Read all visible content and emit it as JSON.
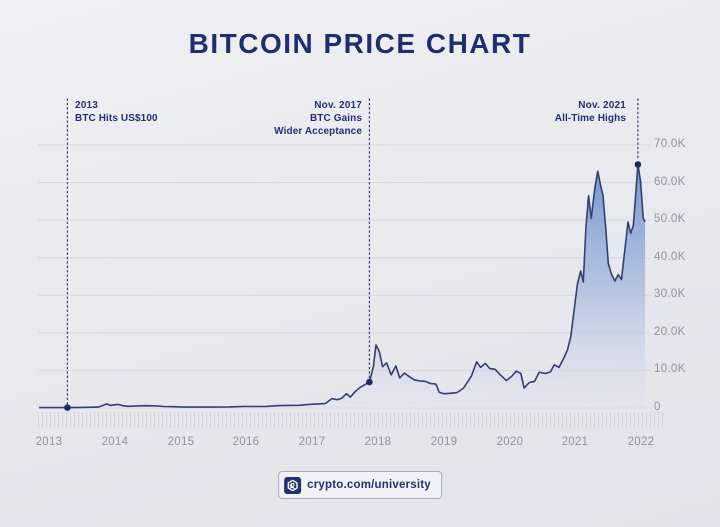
{
  "title": "BITCOIN PRICE CHART",
  "colors": {
    "accent_navy": "#1e2e6e",
    "line": "#33406e",
    "marker": "#1d2b5e",
    "grid": "#d6d8dd",
    "axis_label_gray": "#8f939c",
    "fill_top": "#6089cc",
    "fill_mid": "#a9bcdf",
    "fill_bottom": "#e0e4ee"
  },
  "annotations": [
    {
      "heading": "2013",
      "lines": [
        "BTC Hits US$100"
      ],
      "year": 2013.28,
      "value": 100,
      "align": "left"
    },
    {
      "heading": "Nov. 2017",
      "lines": [
        "BTC Gains",
        "Wider Acceptance"
      ],
      "year": 2017.87,
      "value": 6900,
      "align": "right"
    },
    {
      "heading": "Nov. 2021",
      "lines": [
        "All-Time Highs"
      ],
      "year": 2021.95,
      "value": 64800,
      "align": "right"
    }
  ],
  "y_axis": {
    "labels": [
      "70.0K",
      "60.0K",
      "50.0K",
      "40.0K",
      "30.0K",
      "20.0K",
      "10.0K",
      "0"
    ]
  },
  "x_axis": {
    "labels": [
      "2013",
      "2014",
      "2015",
      "2016",
      "2017",
      "2018",
      "2019",
      "2020",
      "2021",
      "2022"
    ]
  },
  "footer": {
    "badge_text": "crypto.com/university",
    "icon": "crypto-com-logo"
  },
  "chart_data": {
    "type": "area",
    "title": "BITCOIN PRICE CHART",
    "x_unit": "year",
    "y_unit": "USD",
    "xlim": [
      2012.85,
      2022.1
    ],
    "ylim": [
      0,
      70000
    ],
    "y_ticks": [
      0,
      10000,
      20000,
      30000,
      40000,
      50000,
      60000,
      70000
    ],
    "x_ticks": [
      2013,
      2014,
      2015,
      2016,
      2017,
      2018,
      2019,
      2020,
      2021,
      2022
    ],
    "grid": "horizontal",
    "legend": "none",
    "points": [
      [
        2012.85,
        100
      ],
      [
        2013.0,
        100
      ],
      [
        2013.28,
        100
      ],
      [
        2013.5,
        150
      ],
      [
        2013.75,
        250
      ],
      [
        2013.88,
        1100
      ],
      [
        2013.93,
        700
      ],
      [
        2014.0,
        850
      ],
      [
        2014.05,
        950
      ],
      [
        2014.12,
        600
      ],
      [
        2014.2,
        450
      ],
      [
        2014.3,
        500
      ],
      [
        2014.45,
        620
      ],
      [
        2014.6,
        580
      ],
      [
        2014.75,
        400
      ],
      [
        2014.9,
        350
      ],
      [
        2015.05,
        230
      ],
      [
        2015.25,
        240
      ],
      [
        2015.5,
        250
      ],
      [
        2015.75,
        280
      ],
      [
        2015.95,
        420
      ],
      [
        2016.1,
        400
      ],
      [
        2016.3,
        430
      ],
      [
        2016.5,
        650
      ],
      [
        2016.65,
        680
      ],
      [
        2016.8,
        720
      ],
      [
        2016.95,
        950
      ],
      [
        2017.1,
        1100
      ],
      [
        2017.2,
        1200
      ],
      [
        2017.3,
        2500
      ],
      [
        2017.38,
        2200
      ],
      [
        2017.45,
        2600
      ],
      [
        2017.52,
        3800
      ],
      [
        2017.58,
        2900
      ],
      [
        2017.65,
        4300
      ],
      [
        2017.73,
        5500
      ],
      [
        2017.8,
        6200
      ],
      [
        2017.87,
        6900
      ],
      [
        2017.93,
        11000
      ],
      [
        2017.97,
        16800
      ],
      [
        2018.02,
        15000
      ],
      [
        2018.07,
        11000
      ],
      [
        2018.13,
        12000
      ],
      [
        2018.2,
        8800
      ],
      [
        2018.27,
        11200
      ],
      [
        2018.33,
        8000
      ],
      [
        2018.4,
        9300
      ],
      [
        2018.48,
        8300
      ],
      [
        2018.55,
        7500
      ],
      [
        2018.63,
        7200
      ],
      [
        2018.72,
        7100
      ],
      [
        2018.8,
        6500
      ],
      [
        2018.88,
        6400
      ],
      [
        2018.93,
        4200
      ],
      [
        2019.0,
        3800
      ],
      [
        2019.1,
        3900
      ],
      [
        2019.2,
        4100
      ],
      [
        2019.3,
        5300
      ],
      [
        2019.42,
        8500
      ],
      [
        2019.5,
        12300
      ],
      [
        2019.56,
        10800
      ],
      [
        2019.63,
        11900
      ],
      [
        2019.7,
        10500
      ],
      [
        2019.78,
        10300
      ],
      [
        2019.85,
        9000
      ],
      [
        2019.95,
        7300
      ],
      [
        2020.03,
        8400
      ],
      [
        2020.1,
        9800
      ],
      [
        2020.17,
        9200
      ],
      [
        2020.22,
        5300
      ],
      [
        2020.3,
        6800
      ],
      [
        2020.38,
        7100
      ],
      [
        2020.45,
        9500
      ],
      [
        2020.55,
        9200
      ],
      [
        2020.62,
        9600
      ],
      [
        2020.68,
        11500
      ],
      [
        2020.75,
        10800
      ],
      [
        2020.82,
        13200
      ],
      [
        2020.88,
        15500
      ],
      [
        2020.93,
        19000
      ],
      [
        2020.98,
        26000
      ],
      [
        2021.03,
        33000
      ],
      [
        2021.08,
        36500
      ],
      [
        2021.12,
        33500
      ],
      [
        2021.16,
        48000
      ],
      [
        2021.2,
        56500
      ],
      [
        2021.24,
        50500
      ],
      [
        2021.3,
        59000
      ],
      [
        2021.34,
        63000
      ],
      [
        2021.38,
        59500
      ],
      [
        2021.42,
        56500
      ],
      [
        2021.46,
        48000
      ],
      [
        2021.5,
        38500
      ],
      [
        2021.55,
        35500
      ],
      [
        2021.6,
        33800
      ],
      [
        2021.65,
        35500
      ],
      [
        2021.7,
        34200
      ],
      [
        2021.75,
        42000
      ],
      [
        2021.8,
        49500
      ],
      [
        2021.84,
        46500
      ],
      [
        2021.88,
        48500
      ],
      [
        2021.92,
        57500
      ],
      [
        2021.95,
        64800
      ],
      [
        2021.99,
        60500
      ],
      [
        2022.03,
        50500
      ],
      [
        2022.06,
        49500
      ]
    ]
  }
}
